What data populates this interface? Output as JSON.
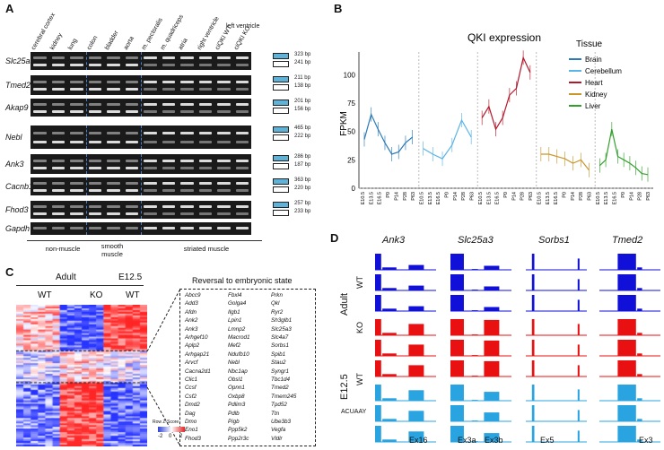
{
  "panels": {
    "a": "A",
    "b": "B",
    "c": "C",
    "d": "D"
  },
  "panelA": {
    "lanes": [
      "cerebral cortex",
      "kidney",
      "lung",
      "colon",
      "bladder",
      "aorta",
      "m. pectoralis",
      "m. quadriceps",
      "atria",
      "right ventricle",
      "ciQKI WT",
      "ciQKI KO"
    ],
    "lv_label": "left ventricle",
    "genes": [
      {
        "name": "Slc25a3",
        "bp": [
          "323 bp",
          "241 bp"
        ]
      },
      {
        "name": "Tmed2",
        "bp": [
          "211 bp",
          "138 bp"
        ]
      },
      {
        "name": "Akap9",
        "bp": [
          "201 bp",
          "156 bp"
        ]
      },
      {
        "name": "Nebl",
        "bp": [
          "465 bp",
          "222 bp"
        ]
      },
      {
        "name": "Ank3",
        "bp": [
          "286 bp",
          "187 bp"
        ]
      },
      {
        "name": "Cacnb1",
        "bp": [
          "363 bp",
          "220 bp"
        ]
      },
      {
        "name": "Fhod3",
        "bp": [
          "257 bp",
          "233 bp"
        ]
      },
      {
        "name": "Gapdh",
        "bp": []
      }
    ],
    "groups": [
      "non-muscle",
      "smooth muscle",
      "striated muscle"
    ]
  },
  "panelB": {
    "title": "QKI expression",
    "ylabel": "FPKM",
    "legend_title": "Tissue",
    "yticks": [
      "0",
      "25",
      "50",
      "75",
      "100"
    ],
    "xticks": [
      "E10.5",
      "E13.5",
      "E16.5",
      "P0",
      "P14",
      "P28",
      "P63",
      "E10.5",
      "E13.5",
      "E16.5",
      "P0",
      "P14",
      "P28",
      "P63",
      "E10.5",
      "E13.5",
      "E16.5",
      "P0",
      "P14",
      "P28",
      "P63",
      "E10.5",
      "E13.5",
      "E16.5",
      "P0",
      "P14",
      "P28",
      "P63",
      "E10.5",
      "E13.5",
      "E16.5",
      "P0",
      "P14",
      "P28",
      "P63"
    ],
    "chart_data": {
      "type": "line",
      "title": "QKI expression",
      "ylabel": "FPKM",
      "ylim": [
        0,
        120
      ],
      "series": [
        {
          "name": "Brain",
          "color": "#2c7bb6",
          "values": [
            43,
            65,
            52,
            40,
            30,
            32,
            40,
            45
          ]
        },
        {
          "name": "Cerebellum",
          "color": "#5ab4e5",
          "values": [
            35,
            30,
            26,
            38,
            60,
            45
          ]
        },
        {
          "name": "Heart",
          "color": "#b2182b",
          "values": [
            62,
            72,
            52,
            62,
            82,
            88,
            115,
            102
          ]
        },
        {
          "name": "Kidney",
          "color": "#c8962c",
          "values": [
            30,
            30,
            28,
            26,
            22,
            25,
            16
          ]
        },
        {
          "name": "Liver",
          "color": "#33a02c",
          "values": [
            20,
            25,
            52,
            28,
            25,
            22,
            18,
            13,
            12
          ]
        }
      ]
    }
  },
  "panelC": {
    "adult": "Adult",
    "wt": "WT",
    "ko": "KO",
    "e125": "E12.5",
    "wt2": "WT",
    "box_title": "Reversal to embryonic state",
    "cols": [
      [
        "Abcc9",
        "Add3",
        "Afdn",
        "Ank2",
        "Ank3",
        "Arhgef10",
        "Aplp2",
        "Arhgap21",
        "Arvcf",
        "Cacna2d1",
        "Clic1",
        "Ccsf",
        "Csf2",
        "Dmd2",
        "Dag",
        "Dmo",
        "Eno1",
        "Fhod3"
      ],
      [
        "Fbxl4",
        "Golga4",
        "Ilgb1",
        "Lpin1",
        "Lmnp2",
        "Macrod1",
        "Mef2",
        "Ndufb10",
        "Nebl",
        "Nbc1ap",
        "Obsl1",
        "Opnn1",
        "Oxbp8",
        "Pdlim3",
        "Pdlb",
        "Pigb",
        "Ppp5k2",
        "Ppp2r3c"
      ],
      [
        "Prkn",
        "Qkl",
        "Ryr2",
        "Sh3glb1",
        "Slc25a3",
        "Slc4a7",
        "Sorbs1",
        "Spib1",
        "Stau2",
        "Syngr1",
        "Tbc1d4",
        "Tmed2",
        "Tmem245",
        "Tpd52",
        "Ttn",
        "Ube3b3",
        "Vegfa",
        "Vldlr"
      ]
    ],
    "scale_label": "Row Z-Score",
    "scale_min": "-2",
    "scale_mid": "0",
    "scale_max": "2"
  },
  "panelD": {
    "genes": [
      "Ank3",
      "Slc25a3",
      "Sorbs1",
      "Tmed2"
    ],
    "rows": [
      {
        "group": "Adult",
        "cond": "WT",
        "color": "#1010d8"
      },
      {
        "group": "Adult",
        "cond": "KO",
        "color": "#e81010"
      },
      {
        "group": "E12.5",
        "cond": "WT",
        "color": "#2aa4e0"
      }
    ],
    "adult": "Adult",
    "e125": "E12.5",
    "wt": "WT",
    "ko": "KO",
    "wt2": "WT",
    "motif": "ACUAAY",
    "exons": [
      "Ex16",
      "Ex3a",
      "Ex3b",
      "Ex5",
      "Ex3"
    ]
  }
}
